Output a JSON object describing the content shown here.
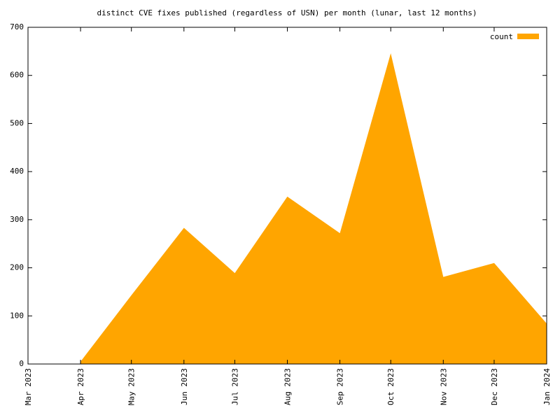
{
  "chart_data": {
    "type": "area",
    "title": "distinct CVE fixes published (regardless of USN) per month (lunar, last 12 months)",
    "x": [
      "2023-04",
      "2023-05",
      "2023-06",
      "2023-07",
      "2023-08",
      "2023-09",
      "2023-10",
      "2023-11",
      "2023-12",
      "2024-01"
    ],
    "series": [
      {
        "name": "count",
        "color": "#ffa500",
        "values": [
          5,
          143,
          283,
          189,
          348,
          272,
          646,
          181,
          210,
          84
        ]
      }
    ],
    "xlim": [
      "2023-03",
      "2024-01"
    ],
    "xticks": [
      {
        "value": "2023-03",
        "label": "Mar 2023"
      },
      {
        "value": "2023-04",
        "label": "Apr 2023"
      },
      {
        "value": "2023-05",
        "label": "May 2023"
      },
      {
        "value": "2023-06",
        "label": "Jun 2023"
      },
      {
        "value": "2023-07",
        "label": "Jul 2023"
      },
      {
        "value": "2023-08",
        "label": "Aug 2023"
      },
      {
        "value": "2023-09",
        "label": "Sep 2023"
      },
      {
        "value": "2023-10",
        "label": "Oct 2023"
      },
      {
        "value": "2023-11",
        "label": "Nov 2023"
      },
      {
        "value": "2023-12",
        "label": "Dec 2023"
      },
      {
        "value": "2024-01",
        "label": "Jan 2024"
      }
    ],
    "ylim": [
      0,
      700
    ],
    "yticks": [
      0,
      100,
      200,
      300,
      400,
      500,
      600,
      700
    ],
    "legend": "upper right"
  }
}
